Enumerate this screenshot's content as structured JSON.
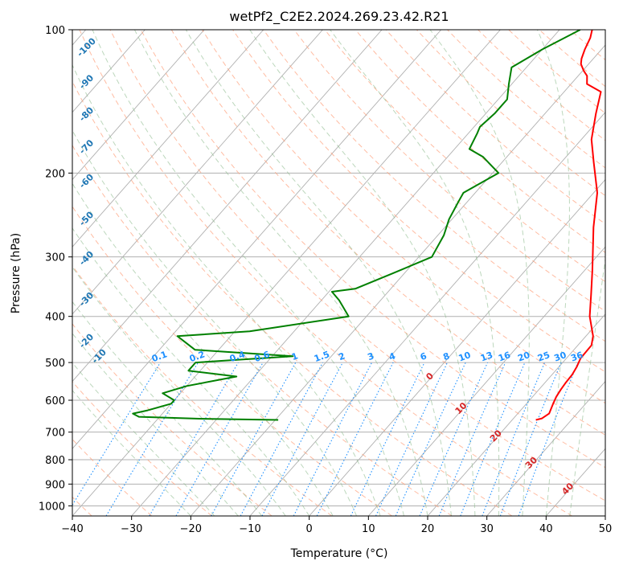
{
  "chart_data": {
    "type": "line",
    "chart_kind": "Skew-T log-P diagram",
    "title": "wetPf2_C2E2.2024.269.23.42.R21",
    "xlabel": "Temperature (°C)",
    "ylabel": "Pressure (hPa)",
    "xlim": [
      -40,
      50
    ],
    "ylim_hpa": [
      1050,
      100
    ],
    "y_scale": "log",
    "x_ticks": [
      -40,
      -30,
      -20,
      -10,
      0,
      10,
      20,
      30,
      40,
      50
    ],
    "y_ticks": [
      100,
      200,
      300,
      400,
      500,
      600,
      700,
      800,
      900,
      1000
    ],
    "grid": true,
    "colors": {
      "temperature": "#ff0000",
      "dewpoint": "#008000",
      "isotherm": "#b0b0b0",
      "dry_adiabat": "#ffa07a",
      "moist_adiabat": "#8fbc8f",
      "mixing_ratio": "#1e90ff",
      "dry_adiabat_label": "#1f77b4",
      "moist_adiabat_label": "#d62728"
    },
    "dry_adiabat_labels": [
      "-100",
      "-90",
      "-80",
      "-70",
      "-60",
      "-50",
      "-40",
      "-30",
      "-20",
      "-10"
    ],
    "moist_adiabat_labels": [
      "0",
      "10",
      "20",
      "30",
      "40"
    ],
    "mixing_ratio_labels": [
      "0.1",
      "0.2",
      "0.4",
      "0.6",
      "1",
      "1.5",
      "2",
      "3",
      "4",
      "6",
      "8",
      "10",
      "13",
      "16",
      "20",
      "25",
      "30",
      "36"
    ],
    "series": [
      {
        "key": "temperature",
        "x_temperature_c": [
          24.0,
          24.8,
          25.3,
          24.5,
          24.0,
          23.7,
          23.5,
          23.4,
          23.0,
          22.4,
          22.3,
          21.2,
          17.7,
          14.7,
          11.3,
          5.1,
          0.6,
          -4.5,
          -8.3,
          -11.4,
          -13.8,
          -17.3,
          -18.5,
          -19.8,
          -21.3,
          -22.0,
          -22.8,
          -23.6,
          -24.5
        ],
        "y_pressure_hpa": [
          660,
          655,
          640,
          610,
          590,
          570,
          550,
          530,
          510,
          490,
          460,
          440,
          400,
          360,
          320,
          260,
          220,
          190,
          170,
          150,
          135,
          130,
          125,
          122,
          118,
          115,
          110,
          104,
          100
        ]
      },
      {
        "key": "dewpoint",
        "x_temperature_c": [
          -19.5,
          -33.0,
          -43.5,
          -45.0,
          -43.0,
          -40.0,
          -40.0,
          -43.0,
          -40.0,
          -33.0,
          -42.0,
          -42.0,
          -26.5,
          -44.0,
          -49.0,
          -37.5,
          -23.0,
          -27.0,
          -29.5,
          -26.0,
          -22.0,
          -17.8,
          -19.0,
          -20.5,
          -21.5,
          -22.0,
          -19.0,
          -24.0,
          -27.5,
          -28.5,
          -29.0,
          -28.5,
          -28.5,
          -30.5,
          -32.5,
          -30.0,
          -26.5
        ],
        "y_pressure_hpa": [
          660,
          656,
          650,
          640,
          630,
          610,
          600,
          580,
          560,
          535,
          520,
          500,
          485,
          470,
          440,
          430,
          400,
          370,
          355,
          350,
          325,
          300,
          270,
          250,
          230,
          220,
          200,
          185,
          178,
          165,
          160,
          150,
          140,
          130,
          120,
          110,
          100
        ]
      }
    ]
  }
}
